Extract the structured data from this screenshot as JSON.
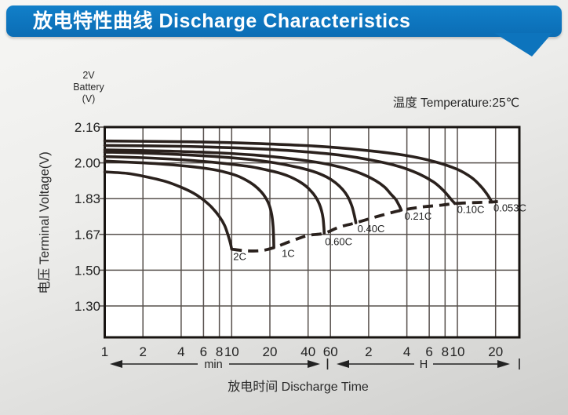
{
  "header": {
    "title": "放电特性曲线 Discharge Characteristics"
  },
  "colors": {
    "header_blue": "#0d74bd",
    "curve": "#2a211d",
    "grid": "#57504c",
    "border": "#181411",
    "text": "#222222",
    "plot_bg": "#ffffff"
  },
  "chart": {
    "battery_lines": [
      "2V",
      "Battery",
      "(V)"
    ],
    "temperature_label": "温度 Temperature:25℃",
    "y_axis_title": "电压 Terminal Voltage(V)",
    "x_axis_title": "放电时间 Discharge Time"
  },
  "chart_data": {
    "type": "line",
    "title": "放电特性曲线 Discharge Characteristics",
    "temperature": "25℃",
    "x_axis": {
      "label": "放电时间 Discharge Time",
      "scale": "log",
      "unit_groups": [
        {
          "unit": "min",
          "ticks": [
            1,
            2,
            4,
            6,
            8,
            10,
            20,
            40,
            60
          ]
        },
        {
          "unit": "H",
          "ticks": [
            2,
            4,
            6,
            8,
            10,
            20
          ]
        }
      ]
    },
    "y_axis": {
      "label": "电压 Terminal Voltage(V)",
      "unit": "V",
      "ticks": [
        2.16,
        2.0,
        1.83,
        1.67,
        1.5,
        1.3
      ]
    },
    "series": [
      {
        "name": "2C",
        "points": [
          [
            1,
            1.957
          ],
          [
            1.5,
            1.95
          ],
          [
            2,
            1.937
          ],
          [
            3,
            1.912
          ],
          [
            4,
            1.884
          ],
          [
            5,
            1.856
          ],
          [
            6,
            1.824
          ],
          [
            7,
            1.79
          ],
          [
            8,
            1.75
          ],
          [
            8.8,
            1.71
          ],
          [
            9.4,
            1.663
          ],
          [
            9.8,
            1.625
          ],
          [
            10,
            1.6
          ]
        ]
      },
      {
        "name": "1C",
        "points": [
          [
            1,
            2.008
          ],
          [
            2,
            2.0
          ],
          [
            3,
            1.993
          ],
          [
            5,
            1.981
          ],
          [
            7,
            1.969
          ],
          [
            9,
            1.955
          ],
          [
            11,
            1.939
          ],
          [
            13,
            1.918
          ],
          [
            15,
            1.894
          ],
          [
            17,
            1.864
          ],
          [
            18.5,
            1.835
          ],
          [
            19.8,
            1.8
          ],
          [
            20.7,
            1.757
          ],
          [
            21.2,
            1.705
          ],
          [
            21.4,
            1.65
          ],
          [
            21.5,
            1.607
          ]
        ]
      },
      {
        "name": "0.60C",
        "points": [
          [
            1,
            2.028
          ],
          [
            2,
            2.023
          ],
          [
            4,
            2.014
          ],
          [
            7,
            2.003
          ],
          [
            10,
            1.993
          ],
          [
            14,
            1.982
          ],
          [
            18,
            1.969
          ],
          [
            23,
            1.954
          ],
          [
            28,
            1.937
          ],
          [
            33,
            1.916
          ],
          [
            38,
            1.892
          ],
          [
            42,
            1.867
          ],
          [
            46,
            1.837
          ],
          [
            49,
            1.806
          ],
          [
            51,
            1.777
          ],
          [
            52.5,
            1.742
          ],
          [
            53.3,
            1.7
          ],
          [
            53.6,
            1.675
          ]
        ]
      },
      {
        "name": "0.40C",
        "points": [
          [
            1,
            2.048
          ],
          [
            2,
            2.044
          ],
          [
            4,
            2.037
          ],
          [
            8,
            2.027
          ],
          [
            14,
            2.015
          ],
          [
            22,
            2.0
          ],
          [
            32,
            1.981
          ],
          [
            44,
            1.959
          ],
          [
            56,
            1.933
          ],
          [
            66,
            1.905
          ],
          [
            75,
            1.873
          ],
          [
            82,
            1.84
          ],
          [
            88,
            1.801
          ],
          [
            92,
            1.762
          ],
          [
            94,
            1.737
          ],
          [
            95.2,
            1.722
          ]
        ]
      },
      {
        "name": "0.21C",
        "points": [
          [
            1,
            2.058
          ],
          [
            3,
            2.053
          ],
          [
            7,
            2.046
          ],
          [
            15,
            2.035
          ],
          [
            30,
            2.018
          ],
          [
            50,
            2.0
          ],
          [
            75,
            1.977
          ],
          [
            105,
            1.949
          ],
          [
            135,
            1.917
          ],
          [
            160,
            1.885
          ],
          [
            180,
            1.851
          ],
          [
            196,
            1.827
          ],
          [
            206,
            1.805
          ],
          [
            213,
            1.789
          ],
          [
            217,
            1.778
          ]
        ]
      },
      {
        "name": "0.10C",
        "points": [
          [
            1,
            2.078
          ],
          [
            4,
            2.074
          ],
          [
            12,
            2.066
          ],
          [
            30,
            2.054
          ],
          [
            70,
            2.035
          ],
          [
            130,
            2.011
          ],
          [
            210,
            1.982
          ],
          [
            300,
            1.947
          ],
          [
            390,
            1.909
          ],
          [
            460,
            1.872
          ],
          [
            510,
            1.842
          ],
          [
            545,
            1.822
          ],
          [
            565,
            1.812
          ],
          [
            572,
            1.808
          ]
        ]
      },
      {
        "name": "0.053C",
        "points": [
          [
            1,
            2.098
          ],
          [
            5,
            2.094
          ],
          [
            15,
            2.087
          ],
          [
            45,
            2.075
          ],
          [
            110,
            2.057
          ],
          [
            230,
            2.034
          ],
          [
            400,
            2.005
          ],
          [
            600,
            1.969
          ],
          [
            780,
            1.929
          ],
          [
            920,
            1.888
          ],
          [
            1020,
            1.854
          ],
          [
            1080,
            1.831
          ],
          [
            1110,
            1.819
          ],
          [
            1122,
            1.815
          ]
        ]
      }
    ],
    "cutoff_curve": {
      "style": "dashed",
      "points": [
        [
          10,
          1.6
        ],
        [
          13,
          1.592
        ],
        [
          17,
          1.593
        ],
        [
          21.5,
          1.607
        ],
        [
          30,
          1.64
        ],
        [
          40,
          1.665
        ],
        [
          53.6,
          1.675
        ],
        [
          70,
          1.702
        ],
        [
          95.2,
          1.722
        ],
        [
          140,
          1.75
        ],
        [
          217,
          1.778
        ],
        [
          320,
          1.793
        ],
        [
          450,
          1.801
        ],
        [
          572,
          1.808
        ],
        [
          800,
          1.812
        ],
        [
          1122,
          1.815
        ],
        [
          1250,
          1.817
        ]
      ]
    }
  }
}
